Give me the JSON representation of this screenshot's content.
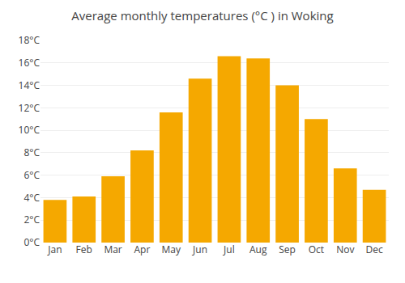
{
  "chart_data": {
    "type": "bar",
    "title": "Average monthly temperatures (°C ) in Woking",
    "categories": [
      "Jan",
      "Feb",
      "Mar",
      "Apr",
      "May",
      "Jun",
      "Jul",
      "Aug",
      "Sep",
      "Oct",
      "Nov",
      "Dec"
    ],
    "values": [
      3.8,
      4.1,
      5.9,
      8.2,
      11.6,
      14.6,
      16.6,
      16.4,
      14.0,
      11.0,
      6.6,
      4.7
    ],
    "color": "#F5A800",
    "ylim": [
      0,
      18
    ],
    "yticks": [
      {
        "value": 0,
        "label": "0°C"
      },
      {
        "value": 2,
        "label": "2°C"
      },
      {
        "value": 4,
        "label": "4°C"
      },
      {
        "value": 6,
        "label": "6°C"
      },
      {
        "value": 8,
        "label": "8°C"
      },
      {
        "value": 10,
        "label": "10°C"
      },
      {
        "value": 12,
        "label": "12°C"
      },
      {
        "value": 14,
        "label": "14°C"
      },
      {
        "value": 16,
        "label": "16°C"
      },
      {
        "value": 18,
        "label": "18°C"
      }
    ],
    "grid": true
  }
}
